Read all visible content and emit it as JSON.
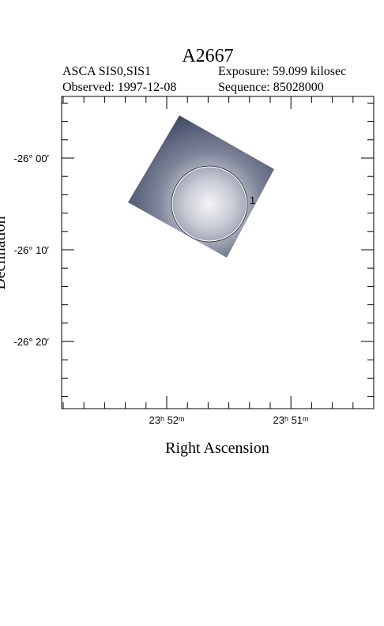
{
  "header": {
    "title": "A2667",
    "instrument": "ASCA SIS0,SIS1",
    "exposure": "Exposure: 59.099 kilosec",
    "observed": "Observed: 1997-12-08",
    "sequence": "Sequence: 85028000"
  },
  "axes": {
    "x_label": "Right Ascension",
    "y_label": "Declination",
    "x_ticks": [
      "23ʰ 52ᵐ",
      "23ʰ 51ᵐ"
    ],
    "y_ticks": [
      "-26° 00′",
      "-26° 10′",
      "-26° 20′"
    ]
  },
  "regions": [
    {
      "label": "1"
    }
  ]
}
